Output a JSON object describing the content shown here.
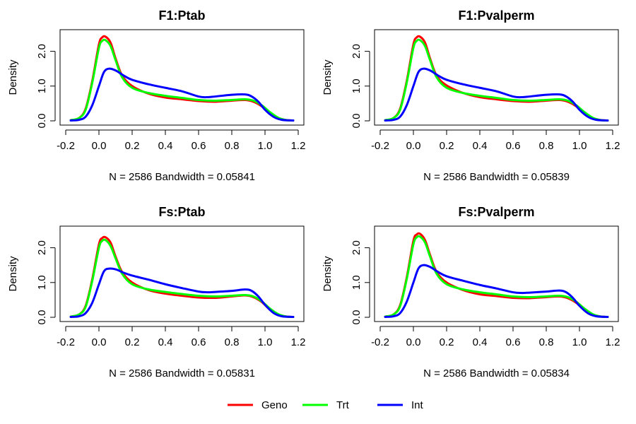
{
  "legend": [
    {
      "name": "Geno",
      "color": "#ff0000"
    },
    {
      "name": "Trt",
      "color": "#00ff00"
    },
    {
      "name": "Int",
      "color": "#0000ff"
    }
  ],
  "chart_data": [
    {
      "type": "line",
      "title": "F1:Ptab",
      "xlabel": "N = 2586   Bandwidth = 0.05841",
      "ylabel": "Density",
      "xlim": [
        -0.2,
        1.2
      ],
      "ylim": [
        0.0,
        2.5
      ],
      "xticks": [
        "-0.2",
        "0.0",
        "0.2",
        "0.4",
        "0.6",
        "0.8",
        "1.0",
        "1.2"
      ],
      "yticks": [
        "0.0",
        "1.0",
        "2.0"
      ],
      "series": [
        {
          "name": "Geno",
          "color": "#ff0000",
          "x": [
            -0.17,
            -0.12,
            -0.08,
            -0.04,
            0.0,
            0.02,
            0.04,
            0.07,
            0.1,
            0.14,
            0.2,
            0.3,
            0.4,
            0.5,
            0.6,
            0.7,
            0.8,
            0.88,
            0.93,
            0.98,
            1.03,
            1.08,
            1.13,
            1.17
          ],
          "y": [
            0.02,
            0.08,
            0.35,
            1.15,
            2.2,
            2.4,
            2.42,
            2.25,
            1.8,
            1.3,
            1.0,
            0.78,
            0.67,
            0.62,
            0.57,
            0.55,
            0.58,
            0.6,
            0.55,
            0.42,
            0.22,
            0.08,
            0.02,
            0.01
          ]
        },
        {
          "name": "Trt",
          "color": "#00ff00",
          "x": [
            -0.17,
            -0.12,
            -0.08,
            -0.04,
            0.0,
            0.02,
            0.04,
            0.07,
            0.1,
            0.14,
            0.2,
            0.3,
            0.4,
            0.5,
            0.6,
            0.7,
            0.8,
            0.88,
            0.93,
            0.98,
            1.03,
            1.08,
            1.13,
            1.17
          ],
          "y": [
            0.02,
            0.08,
            0.32,
            1.1,
            2.1,
            2.3,
            2.32,
            2.15,
            1.75,
            1.25,
            0.95,
            0.8,
            0.72,
            0.66,
            0.6,
            0.58,
            0.6,
            0.62,
            0.58,
            0.45,
            0.25,
            0.09,
            0.02,
            0.01
          ]
        },
        {
          "name": "Int",
          "color": "#0000ff",
          "x": [
            -0.17,
            -0.12,
            -0.08,
            -0.04,
            0.0,
            0.03,
            0.06,
            0.1,
            0.15,
            0.2,
            0.3,
            0.4,
            0.5,
            0.6,
            0.65,
            0.7,
            0.8,
            0.88,
            0.92,
            0.96,
            1.0,
            1.05,
            1.1,
            1.17
          ],
          "y": [
            0.01,
            0.03,
            0.12,
            0.45,
            1.0,
            1.4,
            1.5,
            1.45,
            1.3,
            1.18,
            1.05,
            0.95,
            0.85,
            0.7,
            0.68,
            0.7,
            0.75,
            0.76,
            0.7,
            0.55,
            0.32,
            0.12,
            0.03,
            0.01
          ]
        }
      ]
    },
    {
      "type": "line",
      "title": "F1:Pvalperm",
      "xlabel": "N = 2586   Bandwidth = 0.05839",
      "ylabel": "Density",
      "xlim": [
        -0.2,
        1.2
      ],
      "ylim": [
        0.0,
        2.5
      ],
      "xticks": [
        "-0.2",
        "0.0",
        "0.2",
        "0.4",
        "0.6",
        "0.8",
        "1.0",
        "1.2"
      ],
      "yticks": [
        "0.0",
        "1.0",
        "2.0"
      ],
      "series": [
        {
          "name": "Geno",
          "color": "#ff0000",
          "x": [
            -0.17,
            -0.12,
            -0.08,
            -0.04,
            0.0,
            0.02,
            0.04,
            0.07,
            0.1,
            0.14,
            0.2,
            0.3,
            0.4,
            0.5,
            0.6,
            0.7,
            0.8,
            0.88,
            0.93,
            0.98,
            1.03,
            1.08,
            1.13,
            1.17
          ],
          "y": [
            0.02,
            0.08,
            0.35,
            1.15,
            2.2,
            2.4,
            2.42,
            2.25,
            1.8,
            1.3,
            1.02,
            0.8,
            0.68,
            0.62,
            0.57,
            0.55,
            0.58,
            0.6,
            0.55,
            0.42,
            0.22,
            0.08,
            0.02,
            0.01
          ]
        },
        {
          "name": "Trt",
          "color": "#00ff00",
          "x": [
            -0.17,
            -0.12,
            -0.08,
            -0.04,
            0.0,
            0.02,
            0.04,
            0.07,
            0.1,
            0.14,
            0.2,
            0.3,
            0.4,
            0.5,
            0.6,
            0.7,
            0.8,
            0.88,
            0.93,
            0.98,
            1.03,
            1.08,
            1.13,
            1.17
          ],
          "y": [
            0.02,
            0.08,
            0.32,
            1.1,
            2.1,
            2.3,
            2.32,
            2.15,
            1.75,
            1.25,
            0.95,
            0.8,
            0.72,
            0.66,
            0.6,
            0.58,
            0.6,
            0.62,
            0.58,
            0.45,
            0.25,
            0.09,
            0.02,
            0.01
          ]
        },
        {
          "name": "Int",
          "color": "#0000ff",
          "x": [
            -0.17,
            -0.12,
            -0.08,
            -0.04,
            0.0,
            0.03,
            0.06,
            0.1,
            0.15,
            0.2,
            0.3,
            0.4,
            0.5,
            0.6,
            0.65,
            0.7,
            0.8,
            0.88,
            0.92,
            0.96,
            1.0,
            1.05,
            1.1,
            1.17
          ],
          "y": [
            0.01,
            0.03,
            0.12,
            0.45,
            1.0,
            1.4,
            1.5,
            1.45,
            1.3,
            1.18,
            1.05,
            0.95,
            0.85,
            0.7,
            0.68,
            0.7,
            0.75,
            0.76,
            0.7,
            0.55,
            0.32,
            0.12,
            0.03,
            0.01
          ]
        }
      ]
    },
    {
      "type": "line",
      "title": "Fs:Ptab",
      "xlabel": "N = 2586   Bandwidth = 0.05831",
      "ylabel": "Density",
      "xlim": [
        -0.2,
        1.2
      ],
      "ylim": [
        0.0,
        2.5
      ],
      "xticks": [
        "-0.2",
        "0.0",
        "0.2",
        "0.4",
        "0.6",
        "0.8",
        "1.0",
        "1.2"
      ],
      "yticks": [
        "0.0",
        "1.0",
        "2.0"
      ],
      "series": [
        {
          "name": "Geno",
          "color": "#ff0000",
          "x": [
            -0.17,
            -0.12,
            -0.08,
            -0.04,
            0.0,
            0.02,
            0.04,
            0.07,
            0.1,
            0.14,
            0.2,
            0.3,
            0.4,
            0.5,
            0.6,
            0.7,
            0.8,
            0.88,
            0.93,
            0.98,
            1.03,
            1.08,
            1.13,
            1.17
          ],
          "y": [
            0.02,
            0.08,
            0.33,
            1.1,
            2.1,
            2.28,
            2.3,
            2.15,
            1.75,
            1.3,
            1.0,
            0.78,
            0.68,
            0.62,
            0.57,
            0.56,
            0.6,
            0.63,
            0.58,
            0.44,
            0.22,
            0.08,
            0.02,
            0.01
          ]
        },
        {
          "name": "Trt",
          "color": "#00ff00",
          "x": [
            -0.17,
            -0.12,
            -0.08,
            -0.04,
            0.0,
            0.02,
            0.04,
            0.07,
            0.1,
            0.14,
            0.2,
            0.3,
            0.4,
            0.5,
            0.6,
            0.7,
            0.8,
            0.88,
            0.93,
            0.98,
            1.03,
            1.08,
            1.13,
            1.17
          ],
          "y": [
            0.02,
            0.08,
            0.3,
            1.05,
            2.0,
            2.2,
            2.22,
            2.05,
            1.7,
            1.25,
            0.95,
            0.8,
            0.73,
            0.67,
            0.62,
            0.6,
            0.62,
            0.64,
            0.6,
            0.46,
            0.25,
            0.09,
            0.02,
            0.01
          ]
        },
        {
          "name": "Int",
          "color": "#0000ff",
          "x": [
            -0.17,
            -0.12,
            -0.08,
            -0.04,
            0.0,
            0.03,
            0.06,
            0.1,
            0.15,
            0.2,
            0.3,
            0.4,
            0.5,
            0.6,
            0.65,
            0.7,
            0.8,
            0.88,
            0.92,
            0.96,
            1.0,
            1.05,
            1.1,
            1.17
          ],
          "y": [
            0.01,
            0.03,
            0.12,
            0.42,
            0.95,
            1.32,
            1.4,
            1.38,
            1.28,
            1.2,
            1.08,
            0.95,
            0.84,
            0.74,
            0.72,
            0.73,
            0.76,
            0.8,
            0.76,
            0.6,
            0.36,
            0.13,
            0.03,
            0.01
          ]
        }
      ]
    },
    {
      "type": "line",
      "title": "Fs:Pvalperm",
      "xlabel": "N = 2586   Bandwidth = 0.05834",
      "ylabel": "Density",
      "xlim": [
        -0.2,
        1.2
      ],
      "ylim": [
        0.0,
        2.5
      ],
      "xticks": [
        "-0.2",
        "0.0",
        "0.2",
        "0.4",
        "0.6",
        "0.8",
        "1.0",
        "1.2"
      ],
      "yticks": [
        "0.0",
        "1.0",
        "2.0"
      ],
      "series": [
        {
          "name": "Geno",
          "color": "#ff0000",
          "x": [
            -0.17,
            -0.12,
            -0.08,
            -0.04,
            0.0,
            0.02,
            0.04,
            0.07,
            0.1,
            0.14,
            0.2,
            0.3,
            0.4,
            0.5,
            0.6,
            0.7,
            0.8,
            0.88,
            0.93,
            0.98,
            1.03,
            1.08,
            1.13,
            1.17
          ],
          "y": [
            0.02,
            0.08,
            0.35,
            1.15,
            2.2,
            2.38,
            2.4,
            2.22,
            1.8,
            1.3,
            1.0,
            0.78,
            0.66,
            0.61,
            0.56,
            0.55,
            0.58,
            0.6,
            0.55,
            0.42,
            0.22,
            0.08,
            0.02,
            0.01
          ]
        },
        {
          "name": "Trt",
          "color": "#00ff00",
          "x": [
            -0.17,
            -0.12,
            -0.08,
            -0.04,
            0.0,
            0.02,
            0.04,
            0.07,
            0.1,
            0.14,
            0.2,
            0.3,
            0.4,
            0.5,
            0.6,
            0.7,
            0.8,
            0.88,
            0.93,
            0.98,
            1.03,
            1.08,
            1.13,
            1.17
          ],
          "y": [
            0.02,
            0.08,
            0.32,
            1.1,
            2.1,
            2.3,
            2.32,
            2.15,
            1.75,
            1.25,
            0.95,
            0.8,
            0.72,
            0.66,
            0.6,
            0.58,
            0.6,
            0.62,
            0.58,
            0.45,
            0.25,
            0.09,
            0.02,
            0.01
          ]
        },
        {
          "name": "Int",
          "color": "#0000ff",
          "x": [
            -0.17,
            -0.12,
            -0.08,
            -0.04,
            0.0,
            0.03,
            0.06,
            0.1,
            0.15,
            0.2,
            0.3,
            0.4,
            0.5,
            0.6,
            0.65,
            0.7,
            0.8,
            0.88,
            0.92,
            0.96,
            1.0,
            1.05,
            1.1,
            1.17
          ],
          "y": [
            0.01,
            0.03,
            0.12,
            0.45,
            1.0,
            1.4,
            1.5,
            1.45,
            1.3,
            1.18,
            1.05,
            0.93,
            0.83,
            0.72,
            0.7,
            0.71,
            0.74,
            0.77,
            0.72,
            0.56,
            0.33,
            0.12,
            0.03,
            0.01
          ]
        }
      ]
    }
  ]
}
